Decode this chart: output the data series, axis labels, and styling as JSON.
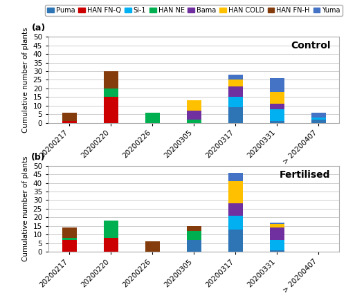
{
  "cultivars": [
    "Puma",
    "HAN FN-Q",
    "Si-1",
    "HAN NE",
    "Bama",
    "HAN COLD",
    "HAN FN-H",
    "Yuma"
  ],
  "colors": [
    "#2E75B6",
    "#CC0000",
    "#00B0F0",
    "#00B050",
    "#7030A0",
    "#FFC000",
    "#843C0C",
    "#4472C4"
  ],
  "dates": [
    "20200217",
    "20200220",
    "20200226",
    "20200305",
    "20200317",
    "20200331",
    "> 20200407"
  ],
  "control": {
    "Puma": [
      0,
      0,
      0,
      0,
      9,
      1,
      2
    ],
    "HAN FN-Q": [
      1,
      15,
      0,
      0,
      0,
      0,
      0
    ],
    "Si-1": [
      0,
      0,
      0,
      0,
      6,
      7,
      1
    ],
    "HAN NE": [
      0,
      5,
      6,
      2,
      0,
      0,
      0
    ],
    "Bama": [
      0,
      0,
      0,
      5,
      6,
      3,
      0
    ],
    "HAN COLD": [
      0,
      0,
      0,
      6,
      4,
      7,
      0
    ],
    "HAN FN-H": [
      5,
      10,
      0,
      0,
      0,
      0,
      0
    ],
    "Yuma": [
      0,
      0,
      0,
      0,
      3,
      8,
      3
    ]
  },
  "fertilised": {
    "Puma": [
      0,
      0,
      0,
      7,
      13,
      1,
      0
    ],
    "HAN FN-Q": [
      7,
      8,
      0,
      0,
      0,
      0,
      0
    ],
    "Si-1": [
      0,
      0,
      0,
      0,
      8,
      6,
      0
    ],
    "HAN NE": [
      1,
      10,
      0,
      5,
      0,
      0,
      0
    ],
    "Bama": [
      0,
      0,
      0,
      0,
      7,
      7,
      0
    ],
    "HAN COLD": [
      0,
      0,
      0,
      0,
      13,
      2,
      0
    ],
    "HAN FN-H": [
      6,
      0,
      6,
      3,
      0,
      0,
      0
    ],
    "Yuma": [
      0,
      0,
      0,
      0,
      5,
      1,
      0
    ]
  },
  "ylim": [
    0,
    50
  ],
  "yticks": [
    0,
    5,
    10,
    15,
    20,
    25,
    30,
    35,
    40,
    45,
    50
  ],
  "ylabel": "Cumulative number of plants",
  "title_a": "Control",
  "title_b": "Fertilised",
  "label_a": "(a)",
  "label_b": "(b)",
  "bar_width": 0.35,
  "legend_fontsize": 7.0,
  "tick_fontsize": 7.5,
  "ylabel_fontsize": 7.5,
  "title_fontsize": 10
}
